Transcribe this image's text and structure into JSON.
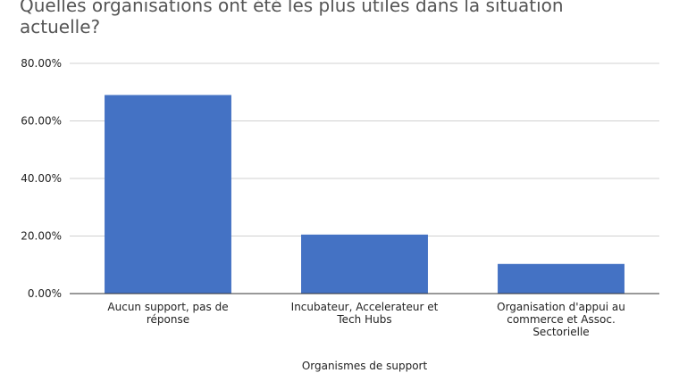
{
  "chart_data": {
    "type": "bar",
    "title": "Quelles organisations ont été les plus utiles dans la situation actuelle?",
    "xlabel": "Organismes de support",
    "ylabel": "",
    "categories": [
      "Aucun support, pas de réponse",
      "Incubateur, Accelerateur et Tech Hubs",
      "Organisation d'appui au commerce et Assoc. Sectorielle"
    ],
    "category_lines": [
      [
        "Aucun support, pas de",
        "réponse"
      ],
      [
        "Incubateur, Accelerateur et",
        "Tech Hubs"
      ],
      [
        "Organisation d'appui au",
        "commerce et Assoc.",
        "Sectorielle"
      ]
    ],
    "values": [
      0.69,
      0.205,
      0.103
    ],
    "ylim": [
      0,
      0.8
    ],
    "yticks": [
      0,
      0.2,
      0.4,
      0.6,
      0.8
    ],
    "ytick_labels": [
      "0.00%",
      "20.00%",
      "40.00%",
      "60.00%",
      "80.00%"
    ],
    "grid": true,
    "bar_color": "#4472c4",
    "grid_color": "#d0d0d0"
  }
}
